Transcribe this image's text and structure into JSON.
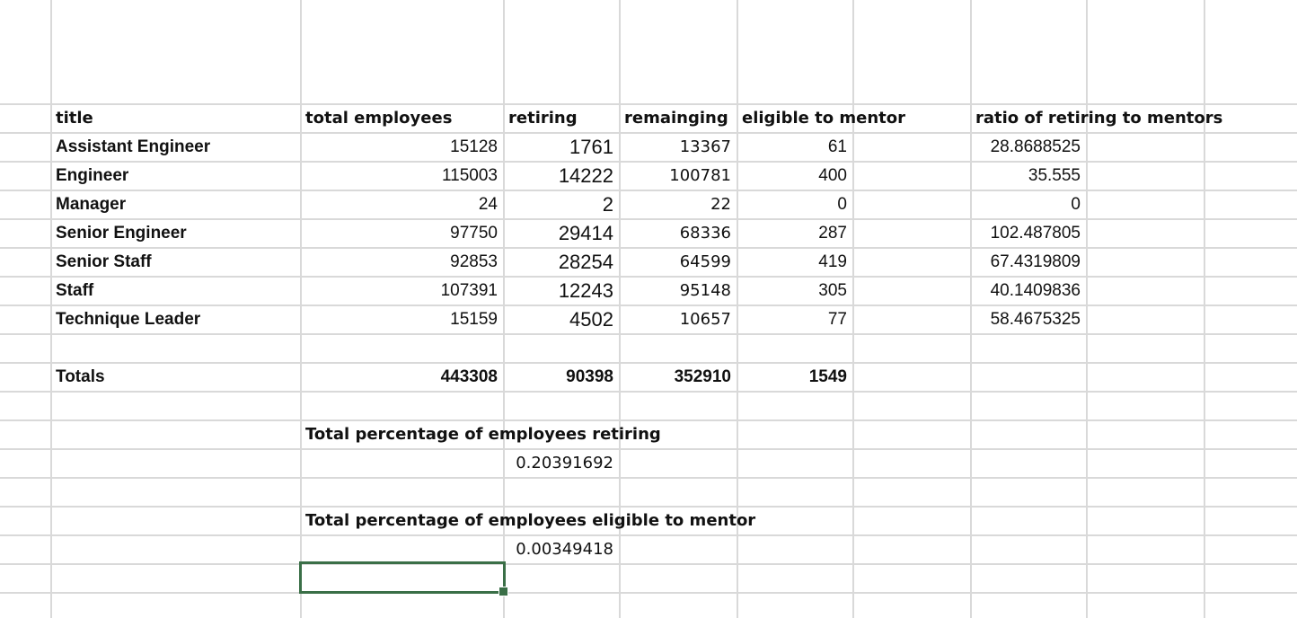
{
  "headers": {
    "title": "title",
    "total_employees": "total employees",
    "retiring": "retiring",
    "remaining": "remainging",
    "eligible": "eligible to mentor",
    "ratio": "ratio of retiring to mentors"
  },
  "rows": [
    {
      "title": "Assistant Engineer",
      "total": "15128",
      "retiring": "1761",
      "remaining": "13367",
      "eligible": "61",
      "ratio": "28.8688525"
    },
    {
      "title": "Engineer",
      "total": "115003",
      "retiring": "14222",
      "remaining": "100781",
      "eligible": "400",
      "ratio": "35.555"
    },
    {
      "title": "Manager",
      "total": "24",
      "retiring": "2",
      "remaining": "22",
      "eligible": "0",
      "ratio": "0"
    },
    {
      "title": "Senior Engineer",
      "total": "97750",
      "retiring": "29414",
      "remaining": "68336",
      "eligible": "287",
      "ratio": "102.487805"
    },
    {
      "title": "Senior Staff",
      "total": "92853",
      "retiring": "28254",
      "remaining": "64599",
      "eligible": "419",
      "ratio": "67.4319809"
    },
    {
      "title": "Staff",
      "total": "107391",
      "retiring": "12243",
      "remaining": "95148",
      "eligible": "305",
      "ratio": "40.1409836"
    },
    {
      "title": "Technique Leader",
      "total": "15159",
      "retiring": "4502",
      "remaining": "10657",
      "eligible": "77",
      "ratio": "58.4675325"
    }
  ],
  "totals": {
    "label": "Totals",
    "total": "443308",
    "retiring": "90398",
    "remaining": "352910",
    "eligible": "1549"
  },
  "summary": {
    "retiring_label": "Total percentage of employees retiring",
    "retiring_value": "0.20391692",
    "mentor_label": "Total percentage of employees eligible to mentor",
    "mentor_value": "0.00349418"
  },
  "colors": {
    "gridline": "#d9d9d9",
    "selection": "#3a6f47"
  }
}
